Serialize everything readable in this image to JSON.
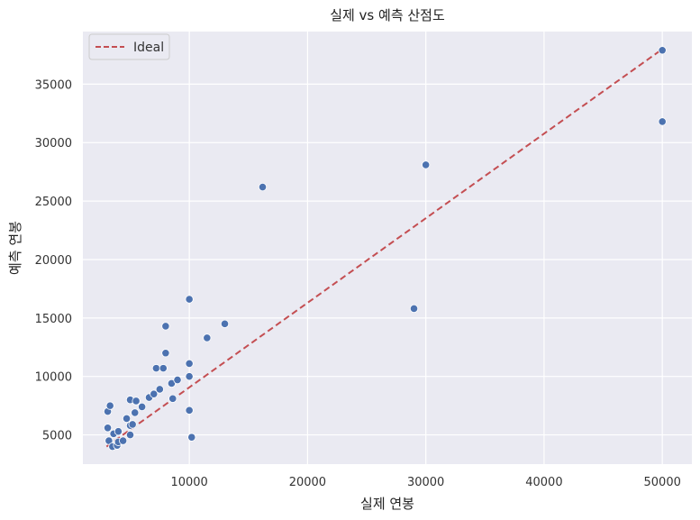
{
  "chart_data": {
    "type": "scatter",
    "title": "실제 vs 예측 산점도",
    "xlabel": "실제 연봉",
    "ylabel": "예측 연봉",
    "xlim": [
      1000,
      52500
    ],
    "ylim": [
      2500,
      39500
    ],
    "xticks": [
      10000,
      20000,
      30000,
      40000,
      50000
    ],
    "yticks": [
      5000,
      10000,
      15000,
      20000,
      25000,
      30000,
      35000
    ],
    "grid": true,
    "legend_position": "top-left",
    "series": [
      {
        "name": "",
        "type": "scatter",
        "color": "#4c72b0",
        "points": [
          [
            3100,
            7000
          ],
          [
            3300,
            7500
          ],
          [
            3100,
            5600
          ],
          [
            3200,
            4500
          ],
          [
            3500,
            4000
          ],
          [
            3600,
            5100
          ],
          [
            4000,
            5300
          ],
          [
            3900,
            4100
          ],
          [
            4000,
            4400
          ],
          [
            4400,
            4500
          ],
          [
            4700,
            6400
          ],
          [
            5000,
            8000
          ],
          [
            5000,
            5000
          ],
          [
            5000,
            5800
          ],
          [
            5200,
            5900
          ],
          [
            5400,
            6900
          ],
          [
            5500,
            7900
          ],
          [
            6000,
            7400
          ],
          [
            6600,
            8200
          ],
          [
            7000,
            8500
          ],
          [
            7200,
            10700
          ],
          [
            7500,
            8900
          ],
          [
            7800,
            10700
          ],
          [
            8000,
            14300
          ],
          [
            8000,
            12000
          ],
          [
            8500,
            9400
          ],
          [
            8600,
            8100
          ],
          [
            9000,
            9700
          ],
          [
            10000,
            16600
          ],
          [
            10000,
            11100
          ],
          [
            10000,
            10000
          ],
          [
            10000,
            7100
          ],
          [
            10200,
            4800
          ],
          [
            11500,
            13300
          ],
          [
            13000,
            14500
          ],
          [
            16200,
            26200
          ],
          [
            29000,
            15800
          ],
          [
            30000,
            28100
          ],
          [
            50000,
            37900
          ],
          [
            50000,
            31800
          ]
        ]
      },
      {
        "name": "Ideal",
        "type": "line",
        "style": "dashed",
        "color": "#c44e52",
        "points": [
          [
            3000,
            4000
          ],
          [
            50000,
            38000
          ]
        ]
      }
    ],
    "colors": {
      "plot_bg": "#eaeaf2",
      "grid": "#ffffff",
      "points": "#4c72b0",
      "ideal_line": "#c44e52"
    }
  }
}
